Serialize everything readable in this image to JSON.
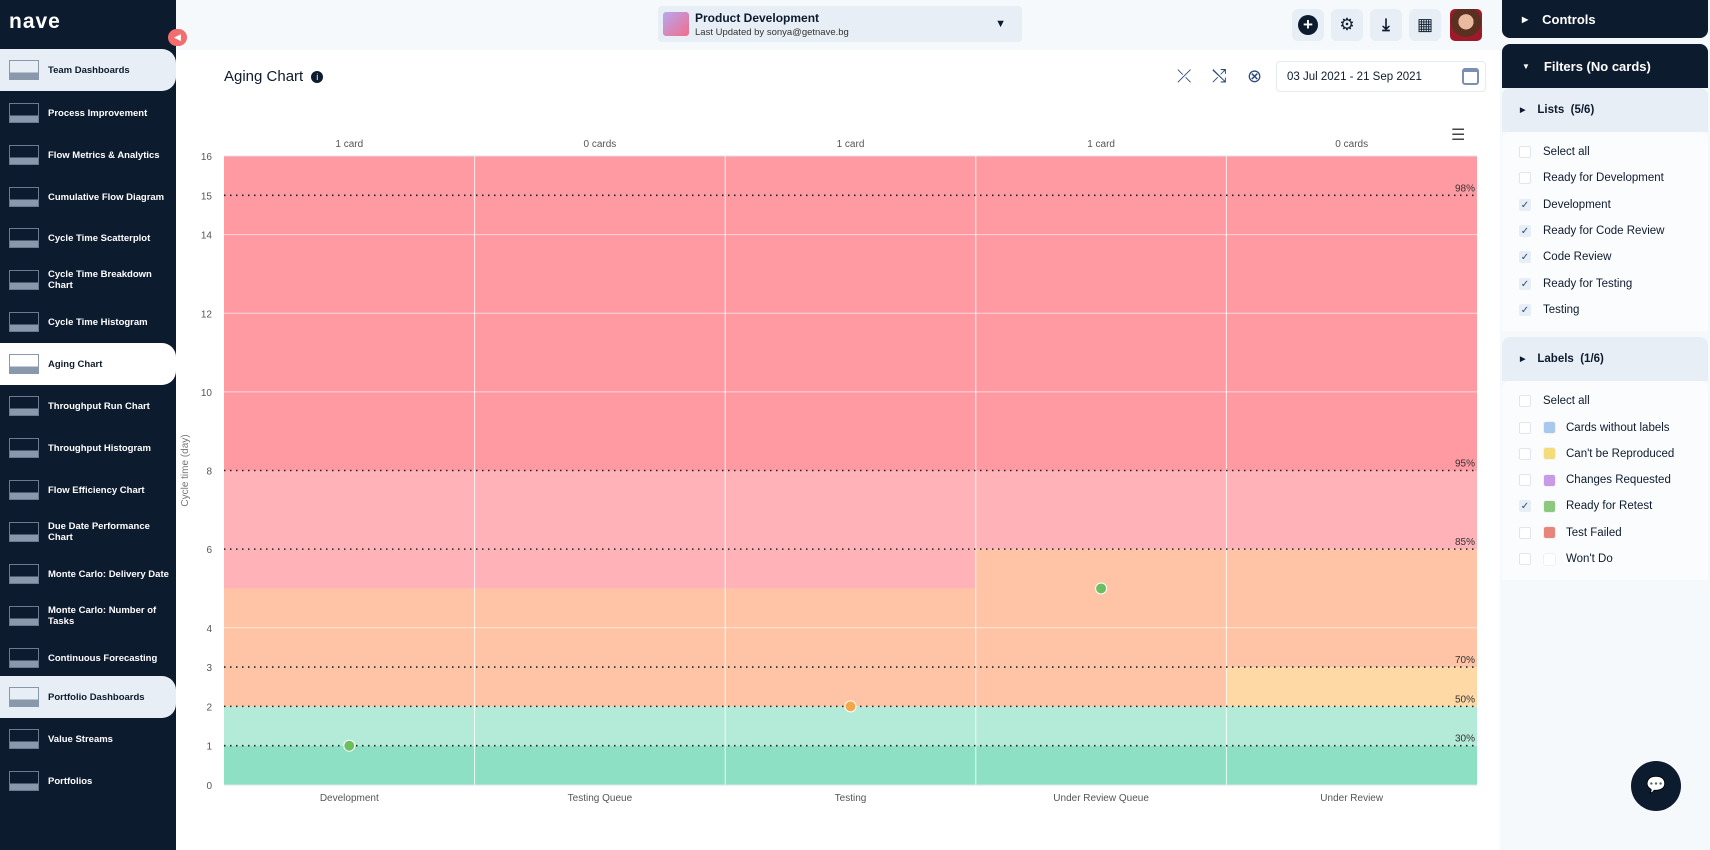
{
  "logo": "nave",
  "sidebar": {
    "items": [
      {
        "label": "Team Dashboards",
        "type": "section"
      },
      {
        "label": "Process Improvement"
      },
      {
        "label": "Flow Metrics & Analytics"
      },
      {
        "label": "Cumulative Flow Diagram"
      },
      {
        "label": "Cycle Time Scatterplot"
      },
      {
        "label": "Cycle Time Breakdown Chart"
      },
      {
        "label": "Cycle Time Histogram"
      },
      {
        "label": "Aging Chart",
        "type": "active"
      },
      {
        "label": "Throughput Run Chart"
      },
      {
        "label": "Throughput Histogram"
      },
      {
        "label": "Flow Efficiency Chart"
      },
      {
        "label": "Due Date Performance Chart"
      },
      {
        "label": "Monte Carlo: Delivery Date"
      },
      {
        "label": "Monte Carlo: Number of Tasks"
      },
      {
        "label": "Continuous Forecasting"
      },
      {
        "label": "Portfolio Dashboards",
        "type": "section"
      },
      {
        "label": "Value Streams"
      },
      {
        "label": "Portfolios"
      }
    ]
  },
  "header": {
    "board_name": "Product Development",
    "last_updated": "Last Updated by sonya@getnave.bg",
    "icons": [
      "plus-circle-icon",
      "gear-icon",
      "download-icon",
      "dashboard-layout-icon"
    ]
  },
  "page": {
    "title": "Aging Chart",
    "date_range": "03 Jul 2021 - 21 Sep 2021"
  },
  "chart_data": {
    "type": "aging",
    "ylabel": "Cycle time (day)",
    "ylim": [
      0,
      16
    ],
    "yticks": [
      0,
      1,
      2,
      3,
      4,
      6,
      8,
      10,
      12,
      14,
      15,
      16
    ],
    "categories": [
      "Development",
      "Testing Queue",
      "Testing",
      "Under Review Queue",
      "Under Review"
    ],
    "card_counts": [
      "1 card",
      "0 cards",
      "1 card",
      "1 card",
      "0 cards"
    ],
    "percentiles": [
      {
        "label": "98%",
        "value": 15
      },
      {
        "label": "95%",
        "value": 8
      },
      {
        "label": "85%",
        "value": 6
      },
      {
        "label": "70%",
        "value": 3
      },
      {
        "label": "50%",
        "value": 2
      },
      {
        "label": "30%",
        "value": 1
      }
    ],
    "bands": [
      [
        [
          0,
          1,
          "#8de0c4"
        ],
        [
          1,
          2,
          "#b4ead8"
        ],
        [
          2,
          5,
          "#ffc3a5"
        ],
        [
          5,
          8,
          "#ffb3b8"
        ],
        [
          8,
          16,
          "#ff9aa2"
        ]
      ],
      [
        [
          0,
          1,
          "#8de0c4"
        ],
        [
          1,
          2,
          "#b4ead8"
        ],
        [
          2,
          5,
          "#ffc3a5"
        ],
        [
          5,
          8,
          "#ffb3b8"
        ],
        [
          8,
          16,
          "#ff9aa2"
        ]
      ],
      [
        [
          0,
          1,
          "#8de0c4"
        ],
        [
          1,
          2,
          "#b4ead8"
        ],
        [
          2,
          5,
          "#ffc3a5"
        ],
        [
          5,
          8,
          "#ffb3b8"
        ],
        [
          8,
          16,
          "#ff9aa2"
        ]
      ],
      [
        [
          0,
          1,
          "#8de0c4"
        ],
        [
          1,
          2,
          "#b4ead8"
        ],
        [
          2,
          6,
          "#ffc3a5"
        ],
        [
          6,
          8,
          "#ffb3b8"
        ],
        [
          8,
          16,
          "#ff9aa2"
        ]
      ],
      [
        [
          0,
          1,
          "#8de0c4"
        ],
        [
          1,
          2,
          "#b4ead8"
        ],
        [
          2,
          3,
          "#ffd9a5"
        ],
        [
          3,
          6,
          "#ffc3a5"
        ],
        [
          6,
          8,
          "#ffb3b8"
        ],
        [
          8,
          16,
          "#ff9aa2"
        ]
      ]
    ],
    "points": [
      {
        "category": "Development",
        "value": 1,
        "color": "#6abf5e"
      },
      {
        "category": "Testing",
        "value": 2,
        "color": "#f5a54a"
      },
      {
        "category": "Under Review Queue",
        "value": 5,
        "color": "#6abf5e"
      }
    ],
    "grid": true
  },
  "right": {
    "controls": "Controls",
    "filters": "Filters (No cards)",
    "lists": {
      "title": "Lists",
      "count": "(5/6)",
      "items": [
        {
          "label": "Select all",
          "checked": false
        },
        {
          "label": "Ready for Development",
          "checked": false
        },
        {
          "label": "Development",
          "checked": true
        },
        {
          "label": "Ready for Code Review",
          "checked": true
        },
        {
          "label": "Code Review",
          "checked": true
        },
        {
          "label": "Ready for Testing",
          "checked": true
        },
        {
          "label": "Testing",
          "checked": true
        }
      ]
    },
    "labels": {
      "title": "Labels",
      "count": "(1/6)",
      "items": [
        {
          "label": "Select all",
          "checked": false
        },
        {
          "label": "Cards without labels",
          "checked": false,
          "color": "#a9c8ee"
        },
        {
          "label": "Can't be Reproduced",
          "checked": false,
          "color": "#f4dc7a"
        },
        {
          "label": "Changes Requested",
          "checked": false,
          "color": "#c99be6"
        },
        {
          "label": "Ready for Retest",
          "checked": true,
          "color": "#8cc97e"
        },
        {
          "label": "Test Failed",
          "checked": false,
          "color": "#e8857a"
        },
        {
          "label": "Won't Do",
          "checked": false,
          "color": "#ffffff"
        }
      ]
    }
  }
}
